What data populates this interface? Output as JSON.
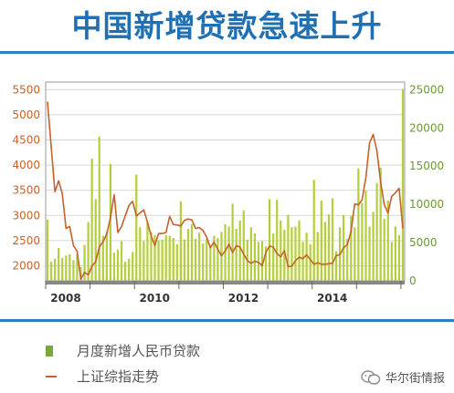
{
  "title": "中国新增贷款急速上升",
  "legend": {
    "bars_label": "月度新增人民币贷款",
    "line_label": "上证综指走势"
  },
  "watermark": {
    "text": "华尔街情报",
    "icon": "wechat-icon"
  },
  "colors": {
    "bar": "#b5cf3c",
    "line": "#c7612a",
    "title": "#1f6fb3"
  },
  "chart_data": {
    "type": "bar+line",
    "x": [
      "2008-01",
      "2008-02",
      "2008-03",
      "2008-04",
      "2008-05",
      "2008-06",
      "2008-07",
      "2008-08",
      "2008-09",
      "2008-10",
      "2008-11",
      "2008-12",
      "2009-01",
      "2009-02",
      "2009-03",
      "2009-04",
      "2009-05",
      "2009-06",
      "2009-07",
      "2009-08",
      "2009-09",
      "2009-10",
      "2009-11",
      "2009-12",
      "2010-01",
      "2010-02",
      "2010-03",
      "2010-04",
      "2010-05",
      "2010-06",
      "2010-07",
      "2010-08",
      "2010-09",
      "2010-10",
      "2010-11",
      "2010-12",
      "2011-01",
      "2011-02",
      "2011-03",
      "2011-04",
      "2011-05",
      "2011-06",
      "2011-07",
      "2011-08",
      "2011-09",
      "2011-10",
      "2011-11",
      "2011-12",
      "2012-01",
      "2012-02",
      "2012-03",
      "2012-04",
      "2012-05",
      "2012-06",
      "2012-07",
      "2012-08",
      "2012-09",
      "2012-10",
      "2012-11",
      "2012-12",
      "2013-01",
      "2013-02",
      "2013-03",
      "2013-04",
      "2013-05",
      "2013-06",
      "2013-07",
      "2013-08",
      "2013-09",
      "2013-10",
      "2013-11",
      "2013-12",
      "2014-01",
      "2014-02",
      "2014-03",
      "2014-04",
      "2014-05",
      "2014-06",
      "2014-07",
      "2014-08",
      "2014-09",
      "2014-10",
      "2014-11",
      "2014-12",
      "2015-01",
      "2015-02",
      "2015-03",
      "2015-04",
      "2015-05",
      "2015-06",
      "2015-07",
      "2015-08",
      "2015-09",
      "2015-10",
      "2015-11",
      "2015-12",
      "2016-01"
    ],
    "x_ticks": [
      "2008",
      "2010",
      "2012",
      "2014"
    ],
    "series": [
      {
        "name": "月度新增人民币贷款",
        "type": "bar",
        "axis": "right",
        "values": [
          8000,
          2500,
          2900,
          4300,
          3000,
          3300,
          3500,
          2700,
          3500,
          1800,
          4700,
          7700,
          16000,
          10700,
          18900,
          5900,
          6500,
          15300,
          3700,
          4100,
          5200,
          2500,
          2900,
          3800,
          13900,
          7000,
          5200,
          7700,
          6400,
          6000,
          5300,
          5400,
          6000,
          5900,
          5600,
          4800,
          10400,
          5400,
          6800,
          7400,
          5500,
          6300,
          4900,
          5500,
          4700,
          5900,
          5600,
          6400,
          7400,
          7100,
          10100,
          6800,
          7900,
          9200,
          5400,
          7000,
          6200,
          5100,
          5200,
          4500,
          10700,
          6200,
          10600,
          7900,
          6700,
          8600,
          7000,
          7100,
          7900,
          5100,
          6300,
          4800,
          13200,
          6400,
          10500,
          7700,
          8700,
          10800,
          3900,
          7000,
          8600,
          5500,
          8500,
          7000,
          14700,
          10200,
          11800,
          7100,
          9000,
          12800,
          14800,
          8100,
          10500,
          5100,
          7100,
          6000,
          25100
        ]
      },
      {
        "name": "上证综指走势",
        "type": "line",
        "axis": "left",
        "values": [
          5260,
          4350,
          3470,
          3690,
          3430,
          2740,
          2780,
          2400,
          2290,
          1730,
          1870,
          1820,
          1990,
          2080,
          2370,
          2480,
          2630,
          2960,
          3410,
          2660,
          2780,
          2990,
          3200,
          3280,
          2990,
          3050,
          3110,
          2870,
          2590,
          2400,
          2640,
          2640,
          2660,
          2980,
          2820,
          2810,
          2790,
          2900,
          2930,
          2910,
          2740,
          2760,
          2700,
          2570,
          2360,
          2470,
          2330,
          2200,
          2290,
          2430,
          2260,
          2400,
          2370,
          2230,
          2100,
          2050,
          2090,
          2070,
          2000,
          2270,
          2390,
          2370,
          2240,
          2180,
          2300,
          1980,
          1990,
          2100,
          2170,
          2140,
          2220,
          2120,
          2030,
          2060,
          2030,
          2030,
          2040,
          2050,
          2200,
          2220,
          2360,
          2420,
          2680,
          3230,
          3210,
          3310,
          3750,
          4440,
          4610,
          4280,
          3660,
          3210,
          3050,
          3380,
          3450,
          3540,
          2740
        ]
      }
    ],
    "yaxis_left": {
      "ticks": [
        2000,
        2500,
        3000,
        3500,
        4000,
        4500,
        5000,
        5500
      ],
      "range": [
        1700,
        5650
      ]
    },
    "yaxis_right": {
      "ticks": [
        0,
        5000,
        10000,
        15000,
        20000,
        25000
      ],
      "range": [
        0,
        26000
      ]
    },
    "grid": true,
    "legend_position": "bottom-left"
  }
}
